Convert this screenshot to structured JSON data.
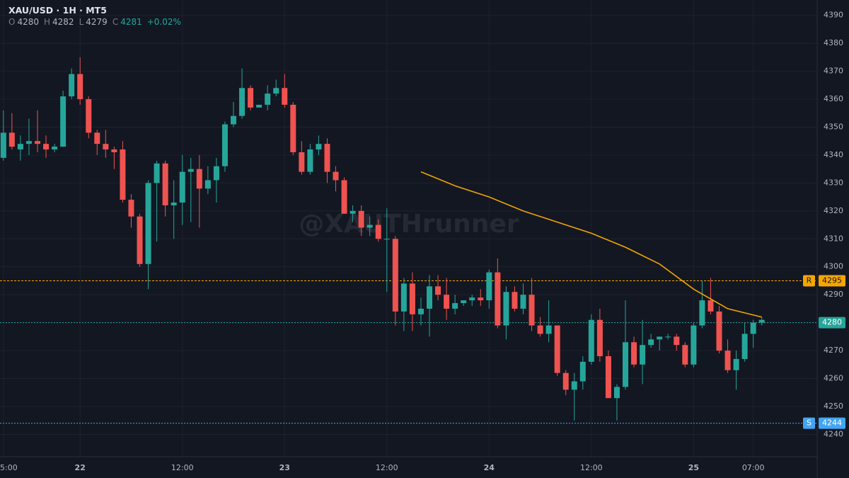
{
  "chart_data": {
    "type": "candlestick",
    "title": "XAU/USD · 1H · MT5",
    "ohlc_labels": [
      "O",
      "H",
      "L",
      "C"
    ],
    "ohlc_values": [
      4280,
      4282,
      4279,
      4281
    ],
    "change": 0.02,
    "change_label": "+0.02%",
    "watermark": "@XAUTHrunner",
    "up_color": "#26a69a",
    "down_color": "#ef5350",
    "x": [
      -9,
      -8,
      -7,
      -6,
      -5,
      -4,
      -3,
      -2,
      -1,
      0,
      1,
      2,
      3,
      4,
      5,
      6,
      7,
      8,
      9,
      10,
      11,
      12,
      13,
      14,
      15,
      16,
      17,
      18,
      19,
      20,
      21,
      22,
      23,
      24,
      25,
      26,
      27,
      28,
      29,
      30,
      31,
      32,
      33,
      34,
      35,
      36,
      37,
      38,
      39,
      40,
      41,
      42,
      43,
      44,
      45,
      46,
      47,
      48,
      49,
      50,
      51,
      52,
      53,
      54,
      55,
      56,
      57,
      58,
      59,
      60,
      61,
      62,
      63,
      64,
      65,
      66,
      67,
      68,
      69,
      70,
      71,
      72,
      73,
      74,
      75,
      76,
      77,
      78,
      79,
      80
    ],
    "open": [
      4339,
      4348,
      4342,
      4344,
      4345,
      4344,
      4342,
      4343,
      4361,
      4369,
      4360,
      4348,
      4344,
      4342,
      4342,
      4324,
      4318,
      4301,
      4330,
      4337,
      4322,
      4323,
      4334,
      4335,
      4328,
      4331,
      4336,
      4351,
      4354,
      4364,
      4357,
      4358,
      4362,
      4364,
      4358,
      4341,
      4334,
      4342,
      4344,
      4334,
      4331,
      4319,
      4320,
      4314,
      4315,
      4310,
      4310,
      4284,
      4294,
      4283,
      4285,
      4293,
      4290,
      4285,
      4287,
      4288,
      4289,
      4288,
      4298,
      4279,
      4291,
      4285,
      4290,
      4279,
      4276,
      4279,
      4262,
      4256,
      4259,
      4266,
      4281,
      4268,
      4253,
      4257,
      4273,
      4265,
      4272,
      4274,
      4275,
      4275,
      4272,
      4265,
      4279,
      4288,
      4284,
      4270,
      4263,
      4267,
      4276,
      4280
    ],
    "high": [
      4356,
      4355,
      4347,
      4353,
      4356,
      4347,
      4344,
      4363,
      4371,
      4375,
      4361,
      4349,
      4349,
      4343,
      4345,
      4326,
      4319,
      4331,
      4338,
      4338,
      4331,
      4340,
      4339,
      4340,
      4336,
      4339,
      4352,
      4359,
      4371,
      4365,
      4358,
      4365,
      4367,
      4369,
      4359,
      4345,
      4344,
      4347,
      4346,
      4336,
      4332,
      4322,
      4322,
      4318,
      4317,
      4321,
      4311,
      4296,
      4298,
      4289,
      4297,
      4297,
      4296,
      4290,
      4288,
      4290,
      4292,
      4299,
      4303,
      4293,
      4293,
      4294,
      4296,
      4282,
      4288,
      4279,
      4263,
      4262,
      4268,
      4283,
      4285,
      4270,
      4258,
      4288,
      4275,
      4281,
      4276,
      4275,
      4276,
      4276,
      4273,
      4280,
      4295,
      4296,
      4286,
      4274,
      4270,
      4280,
      4281,
      4282
    ],
    "low": [
      4338,
      4342,
      4338,
      4340,
      4341,
      4339,
      4341,
      4343,
      4360,
      4358,
      4346,
      4340,
      4339,
      4335,
      4323,
      4314,
      4300,
      4292,
      4309,
      4318,
      4310,
      4315,
      4316,
      4314,
      4326,
      4323,
      4334,
      4350,
      4353,
      4356,
      4357,
      4356,
      4361,
      4357,
      4340,
      4333,
      4333,
      4340,
      4330,
      4327,
      4319,
      4316,
      4311,
      4311,
      4309,
      4291,
      4279,
      4277,
      4277,
      4279,
      4275,
      4288,
      4281,
      4283,
      4286,
      4286,
      4286,
      4285,
      4278,
      4274,
      4284,
      4283,
      4277,
      4275,
      4273,
      4261,
      4254,
      4245,
      4256,
      4265,
      4266,
      4253,
      4245,
      4256,
      4264,
      4258,
      4271,
      4270,
      4274,
      4270,
      4264,
      4264,
      4278,
      4283,
      4269,
      4262,
      4256,
      4266,
      4271,
      4279
    ],
    "close": [
      4348,
      4343,
      4344,
      4345,
      4344,
      4342,
      4343,
      4361,
      4369,
      4360,
      4348,
      4344,
      4342,
      4341,
      4324,
      4318,
      4301,
      4330,
      4337,
      4322,
      4323,
      4334,
      4335,
      4328,
      4331,
      4336,
      4351,
      4354,
      4364,
      4357,
      4358,
      4362,
      4364,
      4358,
      4341,
      4334,
      4342,
      4344,
      4334,
      4331,
      4319,
      4320,
      4314,
      4315,
      4310,
      4310,
      4284,
      4294,
      4283,
      4285,
      4293,
      4290,
      4285,
      4287,
      4288,
      4289,
      4288,
      4298,
      4279,
      4291,
      4285,
      4290,
      4279,
      4276,
      4279,
      4262,
      4256,
      4259,
      4266,
      4281,
      4268,
      4253,
      4257,
      4273,
      4265,
      4272,
      4274,
      4275,
      4275,
      4272,
      4265,
      4279,
      4288,
      4284,
      4270,
      4263,
      4267,
      4276,
      4280,
      4281
    ],
    "overlay": {
      "color": "#f0a500",
      "x": [
        40,
        44,
        48,
        52,
        56,
        60,
        64,
        68,
        72,
        76,
        80
      ],
      "values": [
        4334,
        4329,
        4325,
        4320,
        4316,
        4312,
        4307,
        4301,
        4292,
        4285,
        4282
      ]
    },
    "levels": [
      {
        "label": "R",
        "value": 4295,
        "color": "#f7a600"
      },
      {
        "label": "S",
        "value": 4244,
        "color": "#42a5f5"
      }
    ],
    "price_line": {
      "value": 4280,
      "color": "#26a69a"
    },
    "xlim": [
      -9.4,
      86.5
    ],
    "ylim": [
      4232,
      4395.5
    ],
    "xticks": [
      {
        "value": -9,
        "label": "5:00"
      },
      {
        "value": 0,
        "label": "22"
      },
      {
        "value": 12,
        "label": "12:00"
      },
      {
        "value": 24,
        "label": "23"
      },
      {
        "value": 36,
        "label": "12:00"
      },
      {
        "value": 48,
        "label": "24"
      },
      {
        "value": 60,
        "label": "12:00"
      },
      {
        "value": 72,
        "label": "25"
      },
      {
        "value": 79,
        "label": "07:00"
      }
    ],
    "yticks": [
      4240,
      4250,
      4260,
      4270,
      4280,
      4290,
      4300,
      4310,
      4320,
      4330,
      4340,
      4350,
      4360,
      4370,
      4380,
      4390
    ],
    "grid": true
  }
}
